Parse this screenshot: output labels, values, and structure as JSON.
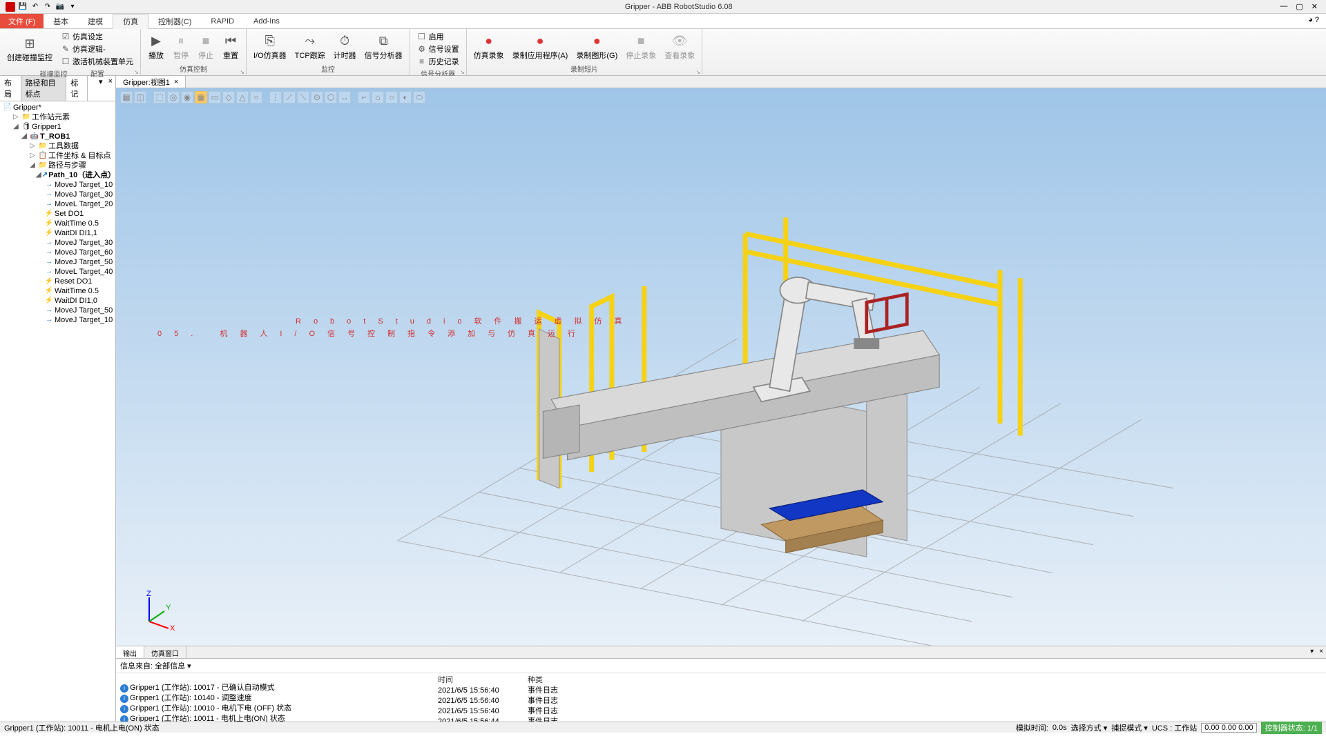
{
  "titlebar": {
    "title": "Gripper - ABB RobotStudio 6.08",
    "win_min": "—",
    "win_max": "▢",
    "win_close": "✕"
  },
  "menu": {
    "file": "文件 (F)",
    "tabs": [
      "基本",
      "建模",
      "仿真",
      "控制器(C)",
      "RAPID",
      "Add-Ins"
    ],
    "active_index": 2
  },
  "ribbon": {
    "groups": [
      {
        "id": "collision",
        "label": "碰撞监控",
        "buttons": [
          {
            "type": "big",
            "icon": "⊞",
            "text": "创建碰撞监控"
          }
        ],
        "stacks": [
          {
            "items": [
              {
                "icon": "☑",
                "text": "仿真设定"
              },
              {
                "icon": "✎",
                "text": "仿真逻辑-"
              },
              {
                "icon": "☐",
                "text": "激活机械装置单元"
              }
            ]
          }
        ],
        "expand": true,
        "label2": "配置"
      },
      {
        "id": "simctrl",
        "label": "仿真控制",
        "buttons": [
          {
            "type": "big",
            "icon": "▶",
            "text": "播放"
          },
          {
            "type": "big",
            "icon": "⏸",
            "text": "暂停",
            "disabled": true
          },
          {
            "type": "big",
            "icon": "■",
            "text": "停止",
            "disabled": true
          },
          {
            "type": "big",
            "icon": "⏮",
            "text": "重置"
          }
        ],
        "expand": true
      },
      {
        "id": "monitor",
        "label": "监控",
        "buttons": [
          {
            "type": "big",
            "icon": "⎘",
            "text": "I/O仿真器"
          },
          {
            "type": "big",
            "icon": "⤳",
            "text": "TCP跟踪"
          },
          {
            "type": "big",
            "icon": "⏱",
            "text": "计时器"
          },
          {
            "type": "big",
            "icon": "⧉",
            "text": "信号分析器"
          }
        ]
      },
      {
        "id": "sigana",
        "label": "信号分析器",
        "stacks": [
          {
            "items": [
              {
                "icon": "☐",
                "text": "启用"
              },
              {
                "icon": "⚙",
                "text": "信号设置"
              },
              {
                "icon": "≡",
                "text": "历史记录"
              }
            ]
          }
        ],
        "expand": true
      },
      {
        "id": "record",
        "label": "录制短片",
        "buttons": [
          {
            "type": "big",
            "icon": "●",
            "text": "仿真录象",
            "red": true
          },
          {
            "type": "big",
            "icon": "●",
            "text": "录制应用程序(A)",
            "red": true
          },
          {
            "type": "big",
            "icon": "●",
            "text": "录制图形(G)",
            "red": true
          },
          {
            "type": "big",
            "icon": "■",
            "text": "停止录象",
            "disabled": true
          },
          {
            "type": "big",
            "icon": "👁",
            "text": "查看录象",
            "disabled": true
          }
        ],
        "expand": true
      }
    ]
  },
  "left_tabs": {
    "items": [
      "布局",
      "路径和目标点",
      "标记"
    ],
    "active": 1
  },
  "tree": [
    {
      "indent": 0,
      "icon": "📄",
      "text": "Gripper*",
      "arrow": ""
    },
    {
      "indent": 1,
      "icon": "📁",
      "text": "工作站元素",
      "arrow": "▷",
      "iconcolor": "#f5c518"
    },
    {
      "indent": 1,
      "icon": "🛢",
      "text": "Gripper1",
      "arrow": "◢"
    },
    {
      "indent": 2,
      "icon": "🤖",
      "text": "T_ROB1",
      "arrow": "◢",
      "bold": true
    },
    {
      "indent": 3,
      "icon": "📁",
      "text": "工具数据",
      "arrow": "▷",
      "iconcolor": "#f5c518"
    },
    {
      "indent": 3,
      "icon": "📋",
      "text": "工件坐标 & 目标点",
      "arrow": "▷"
    },
    {
      "indent": 3,
      "icon": "📁",
      "text": "路径与步骤",
      "arrow": "◢",
      "iconcolor": "#f5c518"
    },
    {
      "indent": 4,
      "icon": "↗",
      "text": "Path_10（进入点）",
      "arrow": "◢",
      "bold": true,
      "iconclass": "arrow-icon"
    },
    {
      "indent": 5,
      "icon": "→",
      "text": "MoveJ Target_10",
      "iconclass": "arrow-icon"
    },
    {
      "indent": 5,
      "icon": "→",
      "text": "MoveJ Target_30",
      "iconclass": "arrow-icon"
    },
    {
      "indent": 5,
      "icon": "→",
      "text": "MoveL Target_20",
      "iconclass": "arrow-icon"
    },
    {
      "indent": 5,
      "icon": "⚡",
      "text": "Set DO1",
      "iconclass": "lightning"
    },
    {
      "indent": 5,
      "icon": "⚡",
      "text": "WaitTime 0.5",
      "iconclass": "lightning"
    },
    {
      "indent": 5,
      "icon": "⚡",
      "text": "WaitDI DI1,1",
      "iconclass": "lightning"
    },
    {
      "indent": 5,
      "icon": "→",
      "text": "MoveJ Target_30",
      "iconclass": "arrow-icon"
    },
    {
      "indent": 5,
      "icon": "→",
      "text": "MoveJ Target_60",
      "iconclass": "arrow-icon"
    },
    {
      "indent": 5,
      "icon": "→",
      "text": "MoveJ Target_50",
      "iconclass": "arrow-icon"
    },
    {
      "indent": 5,
      "icon": "→",
      "text": "MoveL Target_40",
      "iconclass": "arrow-icon"
    },
    {
      "indent": 5,
      "icon": "⚡",
      "text": "Reset DO1",
      "iconclass": "lightning"
    },
    {
      "indent": 5,
      "icon": "⚡",
      "text": "WaitTime 0.5",
      "iconclass": "lightning"
    },
    {
      "indent": 5,
      "icon": "⚡",
      "text": "WaitDI DI1,0",
      "iconclass": "lightning"
    },
    {
      "indent": 5,
      "icon": "→",
      "text": "MoveJ Target_50",
      "iconclass": "arrow-icon"
    },
    {
      "indent": 5,
      "icon": "→",
      "text": "MoveJ Target_10",
      "iconclass": "arrow-icon"
    }
  ],
  "view_tab": {
    "label": "Gripper:视图1",
    "close": "×"
  },
  "watermark": {
    "line1": "RobotStudio软件搬运虚拟仿真",
    "line2p": "05.",
    "line2": "机器人I/O信号控制指令添加与仿真运行"
  },
  "output": {
    "tabs": [
      "输出",
      "仿真窗口"
    ],
    "active": 0,
    "info_label": "信息来自:",
    "info_value": "全部信息",
    "headers": [
      "",
      "时间",
      "种类"
    ],
    "rows": [
      {
        "msg": "Gripper1 (工作站): 10017 - 已确认自动模式",
        "time": "2021/6/5 15:56:40",
        "kind": "事件日志"
      },
      {
        "msg": "Gripper1 (工作站): 10140 - 调整速度",
        "time": "2021/6/5 15:56:40",
        "kind": "事件日志"
      },
      {
        "msg": "Gripper1 (工作站): 10010 - 电机下电 (OFF) 状态",
        "time": "2021/6/5 15:56:40",
        "kind": "事件日志"
      },
      {
        "msg": "Gripper1 (工作站): 10011 - 电机上电(ON) 状态",
        "time": "2021/6/5 15:56:44",
        "kind": "事件日志"
      }
    ]
  },
  "status": {
    "left": "Gripper1 (工作站): 10011 - 电机上电(ON) 状态",
    "sim_time_label": "模拟时间:",
    "sim_time": "0.0s",
    "sel_mode": "选择方式 ▾",
    "snap_mode": "捕捉模式 ▾",
    "ucs_label": "UCS : 工作站",
    "coords": "0.00   0.00   0.00",
    "ctrl_state": "控制器状态:",
    "ctrl_val": "1/1"
  }
}
